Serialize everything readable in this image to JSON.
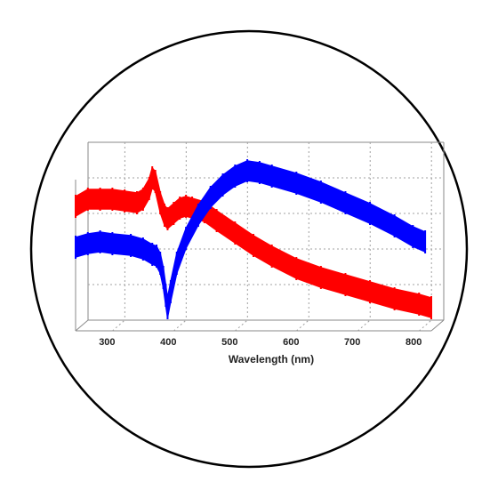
{
  "chart_data": {
    "type": "line",
    "style": "3d-ribbon",
    "xlabel": "Wavelength (nm)",
    "ylabel": "",
    "title": "",
    "xlim": [
      240,
      820
    ],
    "x_ticks": [
      300,
      400,
      500,
      600,
      700,
      800
    ],
    "grid": true,
    "legend": "none",
    "series": [
      {
        "color": "#ff0000",
        "points": [
          [
            240,
            0.7
          ],
          [
            260,
            0.74
          ],
          [
            280,
            0.74
          ],
          [
            300,
            0.74
          ],
          [
            320,
            0.73
          ],
          [
            340,
            0.72
          ],
          [
            350,
            0.74
          ],
          [
            360,
            0.8
          ],
          [
            365,
            0.86
          ],
          [
            370,
            0.84
          ],
          [
            378,
            0.72
          ],
          [
            385,
            0.65
          ],
          [
            390,
            0.63
          ],
          [
            400,
            0.66
          ],
          [
            410,
            0.69
          ],
          [
            420,
            0.7
          ],
          [
            430,
            0.69
          ],
          [
            450,
            0.67
          ],
          [
            470,
            0.62
          ],
          [
            500,
            0.55
          ],
          [
            530,
            0.48
          ],
          [
            560,
            0.42
          ],
          [
            600,
            0.35
          ],
          [
            640,
            0.3
          ],
          [
            680,
            0.26
          ],
          [
            720,
            0.22
          ],
          [
            760,
            0.18
          ],
          [
            800,
            0.15
          ],
          [
            820,
            0.13
          ]
        ]
      },
      {
        "color": "#0000ff",
        "points": [
          [
            240,
            0.47
          ],
          [
            260,
            0.49
          ],
          [
            280,
            0.5
          ],
          [
            300,
            0.49
          ],
          [
            330,
            0.48
          ],
          [
            350,
            0.46
          ],
          [
            365,
            0.43
          ],
          [
            372,
            0.42
          ],
          [
            378,
            0.38
          ],
          [
            383,
            0.3
          ],
          [
            387,
            0.2
          ],
          [
            390,
            0.13
          ],
          [
            395,
            0.22
          ],
          [
            405,
            0.38
          ],
          [
            420,
            0.52
          ],
          [
            440,
            0.65
          ],
          [
            460,
            0.75
          ],
          [
            480,
            0.82
          ],
          [
            500,
            0.87
          ],
          [
            520,
            0.9
          ],
          [
            540,
            0.89
          ],
          [
            560,
            0.87
          ],
          [
            600,
            0.83
          ],
          [
            640,
            0.78
          ],
          [
            680,
            0.72
          ],
          [
            720,
            0.66
          ],
          [
            760,
            0.59
          ],
          [
            790,
            0.53
          ],
          [
            810,
            0.5
          ]
        ]
      }
    ]
  }
}
